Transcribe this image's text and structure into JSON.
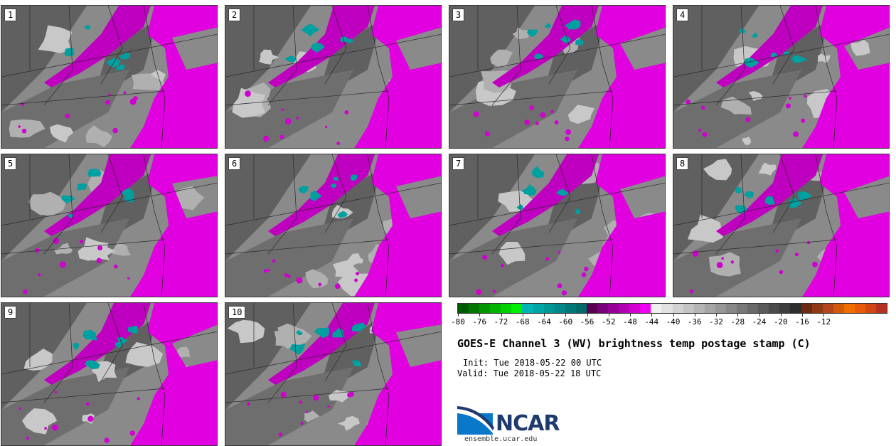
{
  "panels": [
    {
      "label": "1"
    },
    {
      "label": "2"
    },
    {
      "label": "3"
    },
    {
      "label": "4"
    },
    {
      "label": "5"
    },
    {
      "label": "6"
    },
    {
      "label": "7"
    },
    {
      "label": "8"
    },
    {
      "label": "9"
    },
    {
      "label": "10"
    }
  ],
  "colorbar": {
    "colors": [
      "#005a00",
      "#007800",
      "#009600",
      "#00b400",
      "#00d200",
      "#00f000",
      "#00b4b4",
      "#00a5a5",
      "#009696",
      "#008787",
      "#007878",
      "#006969",
      "#5a0050",
      "#780078",
      "#960096",
      "#b400b4",
      "#d200d2",
      "#f000f0",
      "#f0f0f0",
      "#e1e1e1",
      "#d2d2d2",
      "#c3c3c3",
      "#b4b4b4",
      "#a5a5a5",
      "#969696",
      "#878787",
      "#787878",
      "#696969",
      "#5a5a5a",
      "#4b4b4b",
      "#3c3c3c",
      "#2d2d2d",
      "#6b2a14",
      "#8f3a14",
      "#b4461e",
      "#d25a0a",
      "#f06e00",
      "#e65a0a",
      "#d24614",
      "#b4321e"
    ],
    "tick_labels": [
      "-80",
      "-76",
      "-72",
      "-68",
      "-64",
      "-60",
      "-56",
      "-52",
      "-48",
      "-44",
      "-40",
      "-36",
      "-32",
      "-28",
      "-24",
      "-20",
      "-16",
      "-12"
    ]
  },
  "title": "GOES-E Channel 3 (WV) brightness temp postage stamp (C)",
  "init": "Init: Tue 2018-05-22 00 UTC",
  "valid": "Valid: Tue 2018-05-22 18 UTC",
  "logo": {
    "text": "NCAR",
    "site": "ensemble.ucar.edu"
  }
}
